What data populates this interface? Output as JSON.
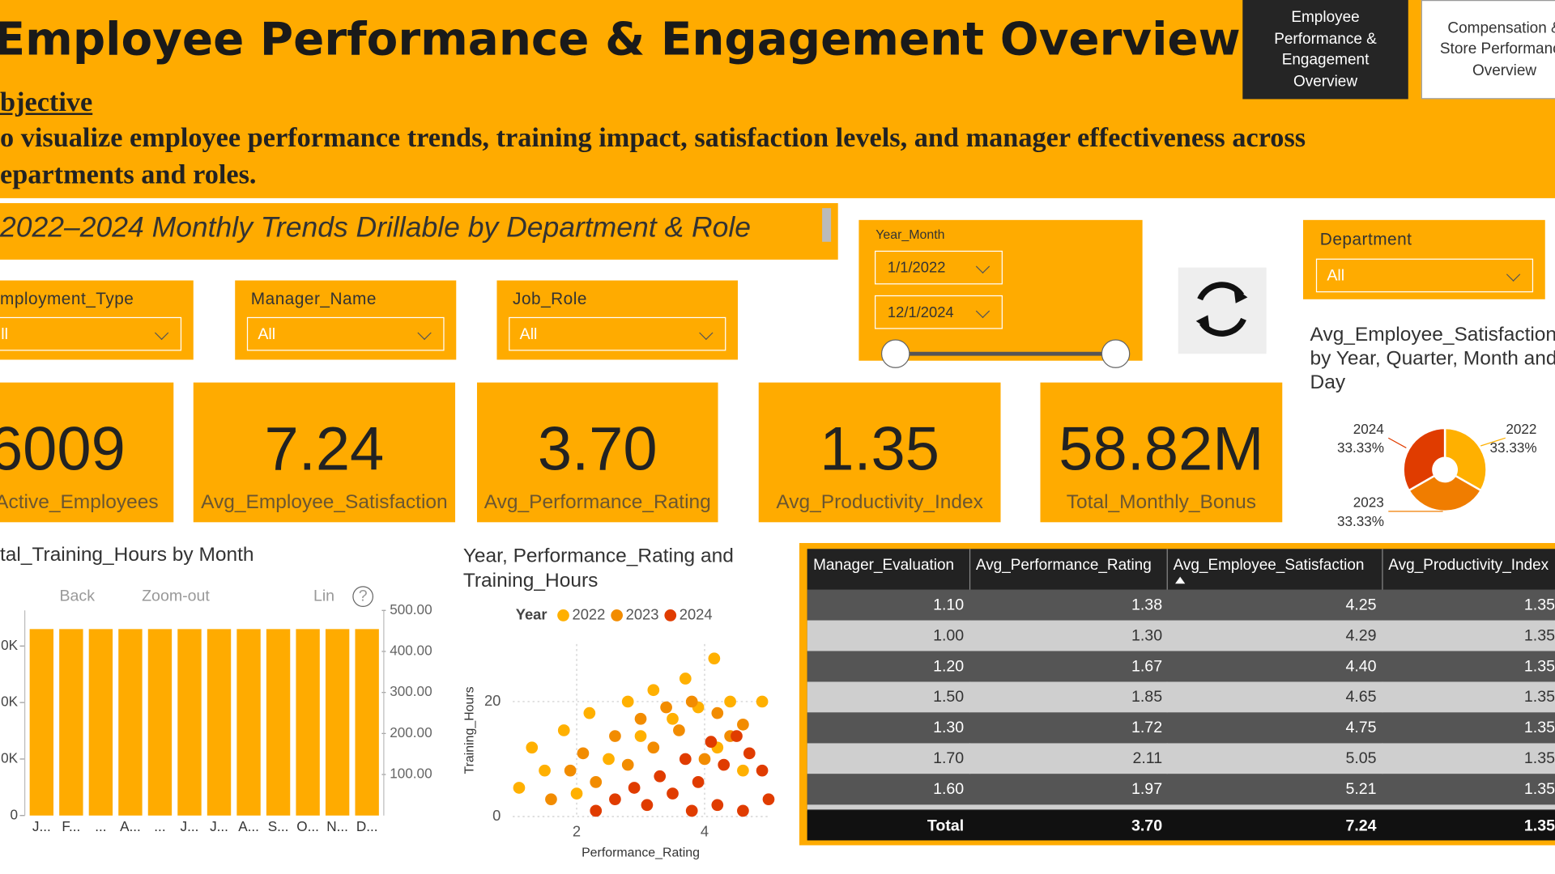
{
  "header": {
    "title": "Employee Performance & Engagement Overview",
    "objective_label": "bjective",
    "objective_lines": [
      "o visualize employee performance trends, training impact, satisfaction levels, and manager effectiveness across",
      "epartments and roles."
    ],
    "subtitle": "2022–2024 Monthly Trends Drillable by Department & Role"
  },
  "nav": [
    "Employee Performance & Engagement Overview",
    "Compensation & Store Performance Overview"
  ],
  "filters": {
    "employment_type": {
      "label": "mployment_Type",
      "value": "ll"
    },
    "manager_name": {
      "label": "Manager_Name",
      "value": "All"
    },
    "job_role": {
      "label": "Job_Role",
      "value": "All"
    },
    "department": {
      "label": "Department",
      "value": "All"
    },
    "year_month": {
      "label": "Year_Month",
      "start": "1/1/2022",
      "end": "12/1/2024"
    }
  },
  "kpis": [
    {
      "value": "6009",
      "label": "Active_Employees"
    },
    {
      "value": "7.24",
      "label": "Avg_Employee_Satisfaction"
    },
    {
      "value": "3.70",
      "label": "Avg_Performance_Rating"
    },
    {
      "value": "1.35",
      "label": "Avg_Productivity_Index"
    },
    {
      "value": "58.82M",
      "label": "Total_Monthly_Bonus"
    }
  ],
  "toolbar": [
    "Back",
    "Zoom-out",
    "Lin",
    "?"
  ],
  "chart_data": [
    {
      "type": "bar",
      "title": "tal_Training_Hours by Month",
      "categories": [
        "J...",
        "F...",
        "...",
        "A...",
        "...",
        "J...",
        "J...",
        "A...",
        "S...",
        "O...",
        "N...",
        "D..."
      ],
      "series": [
        {
          "name": "Total_Training_Hours",
          "color": "#ffab00",
          "values": [
            33000,
            33000,
            33000,
            33000,
            33000,
            33000,
            33000,
            33000,
            33000,
            33000,
            33000,
            33000
          ]
        }
      ],
      "ylim": [
        0,
        36300
      ],
      "yticks": [
        0,
        {
          "value": 10000,
          "label": "0K"
        },
        {
          "value": 20000,
          "label": "0K"
        },
        {
          "value": 30000,
          "label": "0K"
        }
      ],
      "y2lim": [
        0,
        500
      ],
      "y2ticks": [
        {
          "value": 100,
          "label": "100.00"
        },
        {
          "value": 200,
          "label": "200.00"
        },
        {
          "value": 300,
          "label": "300.00"
        },
        {
          "value": 400,
          "label": "400.00"
        },
        {
          "value": 500,
          "label": "500.00"
        }
      ]
    },
    {
      "type": "scatter",
      "title": "Year, Performance_Rating and Training_Hours",
      "x_label": "Performance_Rating",
      "y_label": "Training_Hours",
      "legend_title": "Year",
      "xlim": [
        1,
        5
      ],
      "ylim": [
        0,
        30
      ],
      "xticks": [
        2,
        4
      ],
      "yticks": [
        0,
        20
      ],
      "grid": true,
      "series": [
        {
          "name": "2022",
          "color": "#ffb000",
          "x": [
            1.1,
            1.3,
            1.5,
            1.8,
            2.0,
            2.2,
            2.5,
            2.8,
            3.0,
            3.2,
            3.5,
            3.7,
            3.9,
            4.15,
            4.2,
            4.4,
            4.6,
            4.9
          ],
          "values": [
            5,
            12,
            8,
            15,
            4,
            18,
            10,
            20,
            14,
            22,
            17,
            24,
            19,
            27.5,
            12,
            20,
            8,
            20
          ]
        },
        {
          "name": "2023",
          "color": "#f28c00",
          "x": [
            1.6,
            1.9,
            2.1,
            2.3,
            2.6,
            2.8,
            3.0,
            3.2,
            3.4,
            3.6,
            3.8,
            4.0,
            4.2,
            4.4,
            4.6
          ],
          "values": [
            3,
            8,
            11,
            6,
            14,
            9,
            17,
            12,
            19,
            15,
            20,
            10,
            18,
            14,
            16
          ]
        },
        {
          "name": "2024",
          "color": "#e03c00",
          "x": [
            2.3,
            2.6,
            2.9,
            3.1,
            3.3,
            3.5,
            3.7,
            3.9,
            4.1,
            4.3,
            4.5,
            4.7,
            4.9,
            5.0,
            4.6,
            4.2,
            3.8
          ],
          "values": [
            1,
            3,
            5,
            2,
            7,
            4,
            10,
            6,
            13,
            9,
            14,
            11,
            8,
            3,
            1,
            2,
            1
          ]
        }
      ]
    },
    {
      "type": "pie",
      "title": "Avg_Employee_Satisfaction by Year, Quarter, Month and Day",
      "categories": [
        "2022",
        "2023",
        "2024"
      ],
      "values": [
        33.33,
        33.33,
        33.33
      ],
      "value_labels": [
        "33.33%",
        "33.33%",
        "33.33%"
      ],
      "colors": [
        "#ffb000",
        "#f07d00",
        "#e03c00"
      ]
    }
  ],
  "table": {
    "columns": [
      "Manager_Evaluation",
      "Avg_Performance_Rating",
      "Avg_Employee_Satisfaction",
      "Avg_Productivity_Index"
    ],
    "rows": [
      [
        "1.10",
        "1.38",
        "4.25",
        "1.35"
      ],
      [
        "1.00",
        "1.30",
        "4.29",
        "1.35"
      ],
      [
        "1.20",
        "1.67",
        "4.40",
        "1.35"
      ],
      [
        "1.50",
        "1.85",
        "4.65",
        "1.35"
      ],
      [
        "1.30",
        "1.72",
        "4.75",
        "1.35"
      ],
      [
        "1.70",
        "2.11",
        "5.05",
        "1.35"
      ],
      [
        "1.60",
        "1.97",
        "5.21",
        "1.35"
      ]
    ],
    "total": [
      "Total",
      "3.70",
      "7.24",
      "1.35"
    ]
  }
}
